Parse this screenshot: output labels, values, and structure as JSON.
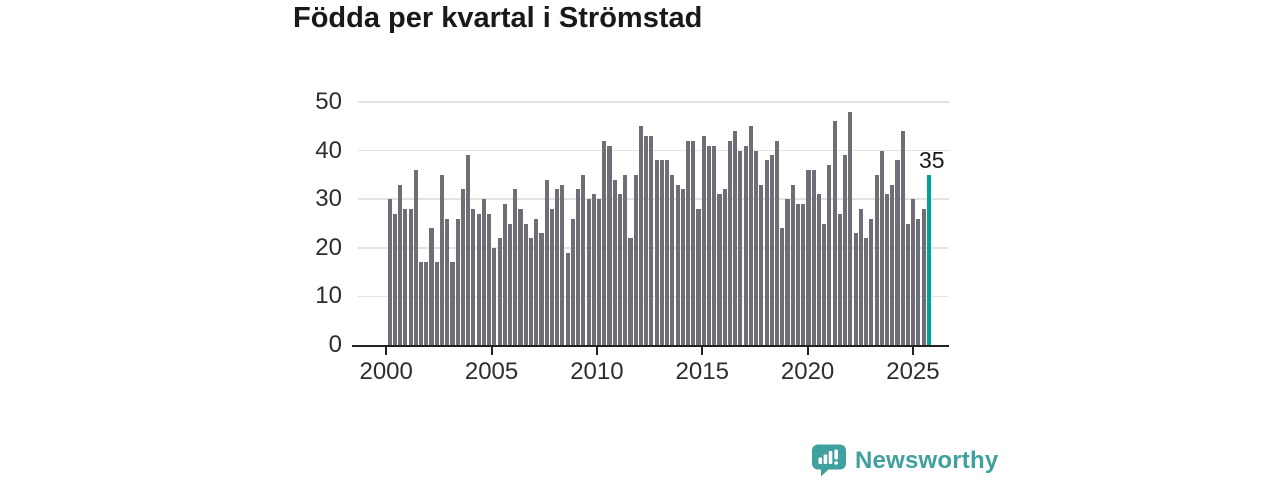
{
  "title": "Födda per kvartal i Strömstad",
  "annotation": {
    "label": "35"
  },
  "logo": {
    "text": "Newsworthy",
    "icon": "speech-bubble-bar-chart-icon"
  },
  "colors": {
    "background": "#ffffff",
    "bar": "#6e6e76",
    "highlight": "#00a19b",
    "logo_teal": "#3fa19d",
    "grid": "#e3e3e3",
    "axis": "#222222",
    "title_text": "#191919",
    "label_text": "#2e2e2e"
  },
  "chart_data": {
    "type": "bar",
    "title": "Födda per kvartal i Strömstad",
    "xlabel": "",
    "ylabel": "",
    "ylim": [
      0,
      50
    ],
    "y_ticks": [
      0,
      10,
      20,
      30,
      40,
      50
    ],
    "x_ticks": [
      2000,
      2005,
      2010,
      2015,
      2020,
      2025
    ],
    "grid": true,
    "legend": false,
    "start_year": 2000,
    "quarters_per_year": 4,
    "x_start": "2000-Q1",
    "x_end": "2025-Q4",
    "highlight_last": true,
    "highlight_quarter": "2025-Q4",
    "highlight_value": 35,
    "values": [
      30,
      27,
      33,
      28,
      28,
      36,
      17,
      17,
      24,
      17,
      35,
      26,
      17,
      26,
      32,
      39,
      28,
      27,
      30,
      27,
      20,
      22,
      29,
      25,
      32,
      28,
      25,
      22,
      26,
      23,
      34,
      28,
      32,
      33,
      19,
      26,
      32,
      35,
      30,
      31,
      30,
      42,
      41,
      34,
      31,
      35,
      22,
      35,
      45,
      43,
      43,
      38,
      38,
      38,
      35,
      33,
      32,
      42,
      42,
      28,
      43,
      41,
      41,
      31,
      32,
      42,
      44,
      40,
      41,
      45,
      40,
      33,
      38,
      39,
      42,
      24,
      30,
      33,
      29,
      29,
      36,
      36,
      31,
      25,
      37,
      46,
      27,
      39,
      48,
      23,
      28,
      22,
      26,
      35,
      40,
      31,
      33,
      38,
      44,
      25,
      30,
      26,
      28,
      35
    ]
  }
}
